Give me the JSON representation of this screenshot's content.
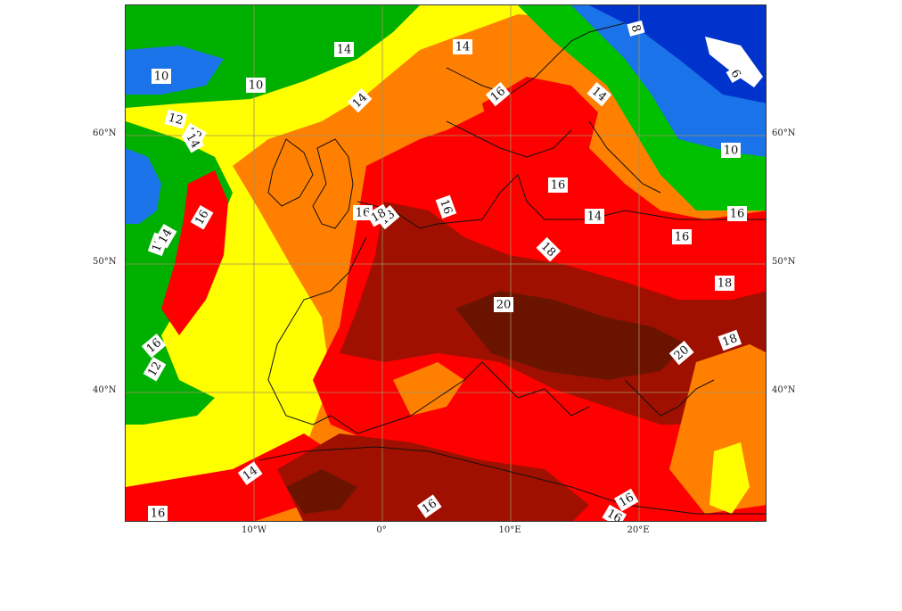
{
  "map": {
    "type": "filled-contour",
    "palette": {
      "6": "#ffffff",
      "8": "#0033cc",
      "10": "#1a73e8",
      "12": "#00b000",
      "14": "#ffff00",
      "16": "#ff8000",
      "18": "#ff0000",
      "20": "#a01000",
      "22": "#601000"
    },
    "latitude_labels": [
      "60°N",
      "50°N",
      "40°N"
    ],
    "longitude_labels": [
      "10°W",
      "0°",
      "10°E",
      "20°E"
    ],
    "contour_labels": [
      "10",
      "10",
      "12",
      "12",
      "12",
      "14",
      "14",
      "14",
      "16",
      "16",
      "16",
      "16",
      "16",
      "16",
      "16",
      "16",
      "16",
      "16",
      "18",
      "18",
      "18",
      "18",
      "18",
      "20",
      "20",
      "14",
      "14",
      "14",
      "16",
      "16",
      "12",
      "14",
      "8",
      "6",
      "10",
      "14",
      "16"
    ]
  }
}
